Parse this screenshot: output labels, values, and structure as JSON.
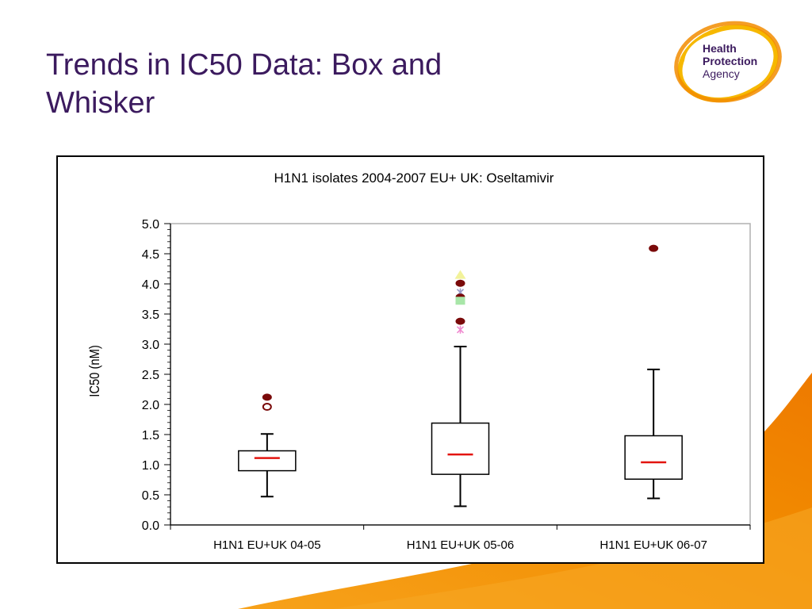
{
  "slide": {
    "title_line1": "Trends in IC50 Data: Box and",
    "title_line2": "Whisker",
    "logo_text": [
      "Health",
      "Protection",
      "Agency"
    ]
  },
  "colors": {
    "title": "#3b1a5e",
    "median": "#e3140f",
    "outlier_dark": "#7a0a0a",
    "brand_orange": "#f28c00",
    "brand_purple": "#3b1a5e"
  },
  "chart_data": {
    "type": "boxplot",
    "title": "H1N1 isolates 2004-2007 EU+ UK: Oseltamivir",
    "xlabel": "",
    "ylabel": "IC50 (nM)",
    "ylim": [
      0,
      5
    ],
    "yticks": [
      "0.0",
      "0.5",
      "1.0",
      "1.5",
      "2.0",
      "2.5",
      "3.0",
      "3.5",
      "4.0",
      "4.5",
      "5.0"
    ],
    "grid": false,
    "categories": [
      "H1N1 EU+UK 04-05",
      "H1N1 EU+UK 05-06",
      "H1N1 EU+UK 06-07"
    ],
    "boxes": [
      {
        "whisker_low": 0.47,
        "q1": 0.9,
        "median": 1.11,
        "q3": 1.23,
        "whisker_high": 1.51
      },
      {
        "whisker_low": 0.31,
        "q1": 0.84,
        "median": 1.17,
        "q3": 1.69,
        "whisker_high": 2.96
      },
      {
        "whisker_low": 0.44,
        "q1": 0.76,
        "median": 1.04,
        "q3": 1.48,
        "whisker_high": 2.58
      }
    ],
    "outliers": [
      {
        "category": 0,
        "value": 2.12,
        "marker": "dot",
        "color": "#7a0a0a"
      },
      {
        "category": 0,
        "value": 1.96,
        "marker": "ring",
        "color": "#7a0a0a"
      },
      {
        "category": 1,
        "value": 4.15,
        "marker": "triangle",
        "color": "#f2f29a"
      },
      {
        "category": 1,
        "value": 4.01,
        "marker": "dot",
        "color": "#7a0a0a"
      },
      {
        "category": 1,
        "value": 3.86,
        "marker": "x",
        "color": "#9a9ac8"
      },
      {
        "category": 1,
        "value": 3.78,
        "marker": "dot",
        "color": "#7a0a0a"
      },
      {
        "category": 1,
        "value": 3.72,
        "marker": "square",
        "color": "#a8e6a8"
      },
      {
        "category": 1,
        "value": 3.38,
        "marker": "dot",
        "color": "#7a0a0a"
      },
      {
        "category": 1,
        "value": 3.24,
        "marker": "x",
        "color": "#f08ad0"
      },
      {
        "category": 2,
        "value": 4.59,
        "marker": "dot",
        "color": "#7a0a0a"
      }
    ]
  }
}
